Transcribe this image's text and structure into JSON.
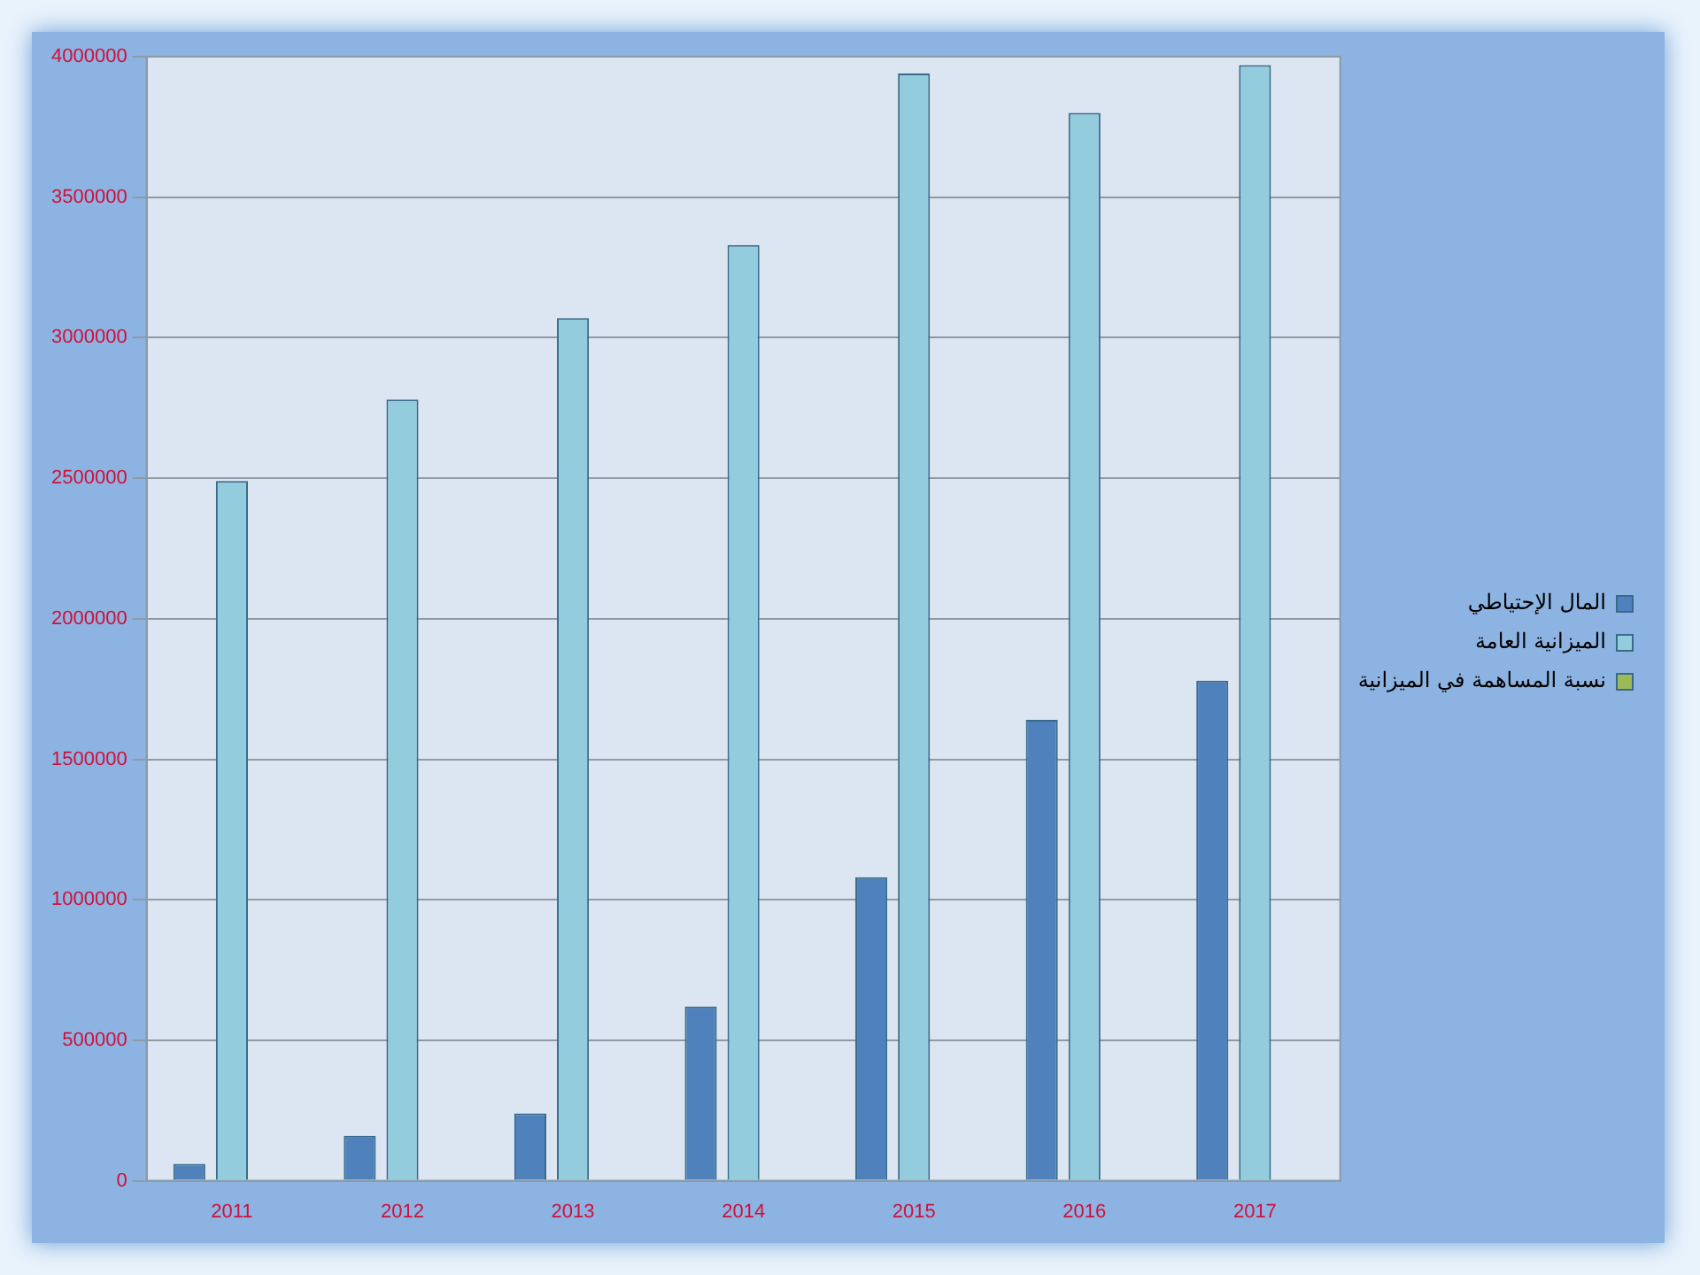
{
  "chart_data": {
    "type": "bar",
    "categories": [
      "2011",
      "2012",
      "2013",
      "2014",
      "2015",
      "2016",
      "2017"
    ],
    "series": [
      {
        "name": "المال الإحتياطي",
        "color": "#4f81bd",
        "values": [
          60000,
          160000,
          240000,
          620000,
          1080000,
          1640000,
          1780000
        ]
      },
      {
        "name": "الميزانية العامة",
        "color": "#93cddd",
        "values": [
          2490000,
          2780000,
          3070000,
          3330000,
          3940000,
          3800000,
          3970000
        ]
      },
      {
        "name": "نسبة المساهمة في الميزانية",
        "color": "#9bbb59",
        "values": [
          0,
          0,
          0,
          0,
          0,
          0,
          0
        ]
      }
    ],
    "ylim": [
      0,
      4000000
    ],
    "yticks": [
      0,
      500000,
      1000000,
      1500000,
      2000000,
      2500000,
      3000000,
      3500000,
      4000000
    ],
    "grid": "y",
    "legend": "right"
  }
}
